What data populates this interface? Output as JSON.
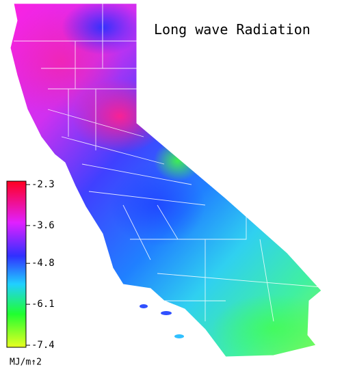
{
  "title": "Long wave Radiation",
  "colorbar": {
    "ticks": [
      -2.3,
      -3.6,
      -4.8,
      -6.1,
      -7.4
    ],
    "unit": "MJ/m↑2"
  }
}
